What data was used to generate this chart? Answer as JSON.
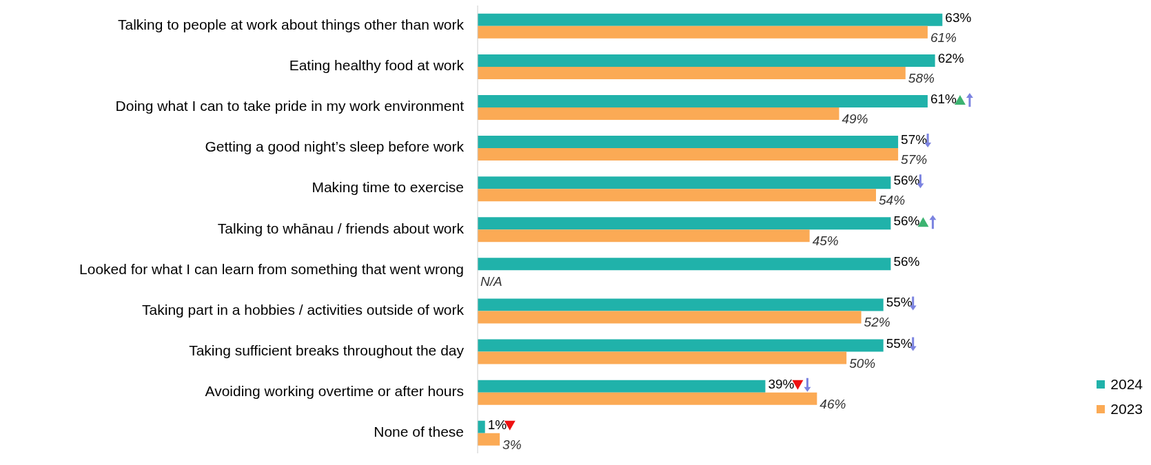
{
  "chart_data": {
    "type": "bar",
    "orientation": "horizontal",
    "categories": [
      "Talking to people at work about things other than work",
      "Eating healthy food at work",
      "Doing what I can to take pride in my work environment",
      "Getting a good night’s sleep before work",
      "Making time to exercise",
      "Talking to whānau / friends about work",
      "Looked for what I can learn from something that went wrong",
      "Taking part in a hobbies / activities outside of work",
      "Taking sufficient breaks throughout the day",
      "Avoiding working overtime or after hours",
      "None of these"
    ],
    "series": [
      {
        "name": "2024",
        "color": "#20b2aa",
        "values": [
          63,
          62,
          61,
          57,
          56,
          56,
          56,
          55,
          55,
          39,
          1
        ],
        "value_labels": [
          "63%",
          "62%",
          "61%",
          "57%",
          "56%",
          "56%",
          "56%",
          "55%",
          "55%",
          "39%",
          "1%"
        ]
      },
      {
        "name": "2023",
        "color": "#fbaa55",
        "values": [
          61,
          58,
          49,
          57,
          54,
          45,
          null,
          52,
          50,
          46,
          3
        ],
        "value_labels": [
          "61%",
          "58%",
          "49%",
          "57%",
          "54%",
          "45%",
          "N/A",
          "52%",
          "50%",
          "46%",
          "3%"
        ]
      }
    ],
    "legend": "bottom right"
  }
}
